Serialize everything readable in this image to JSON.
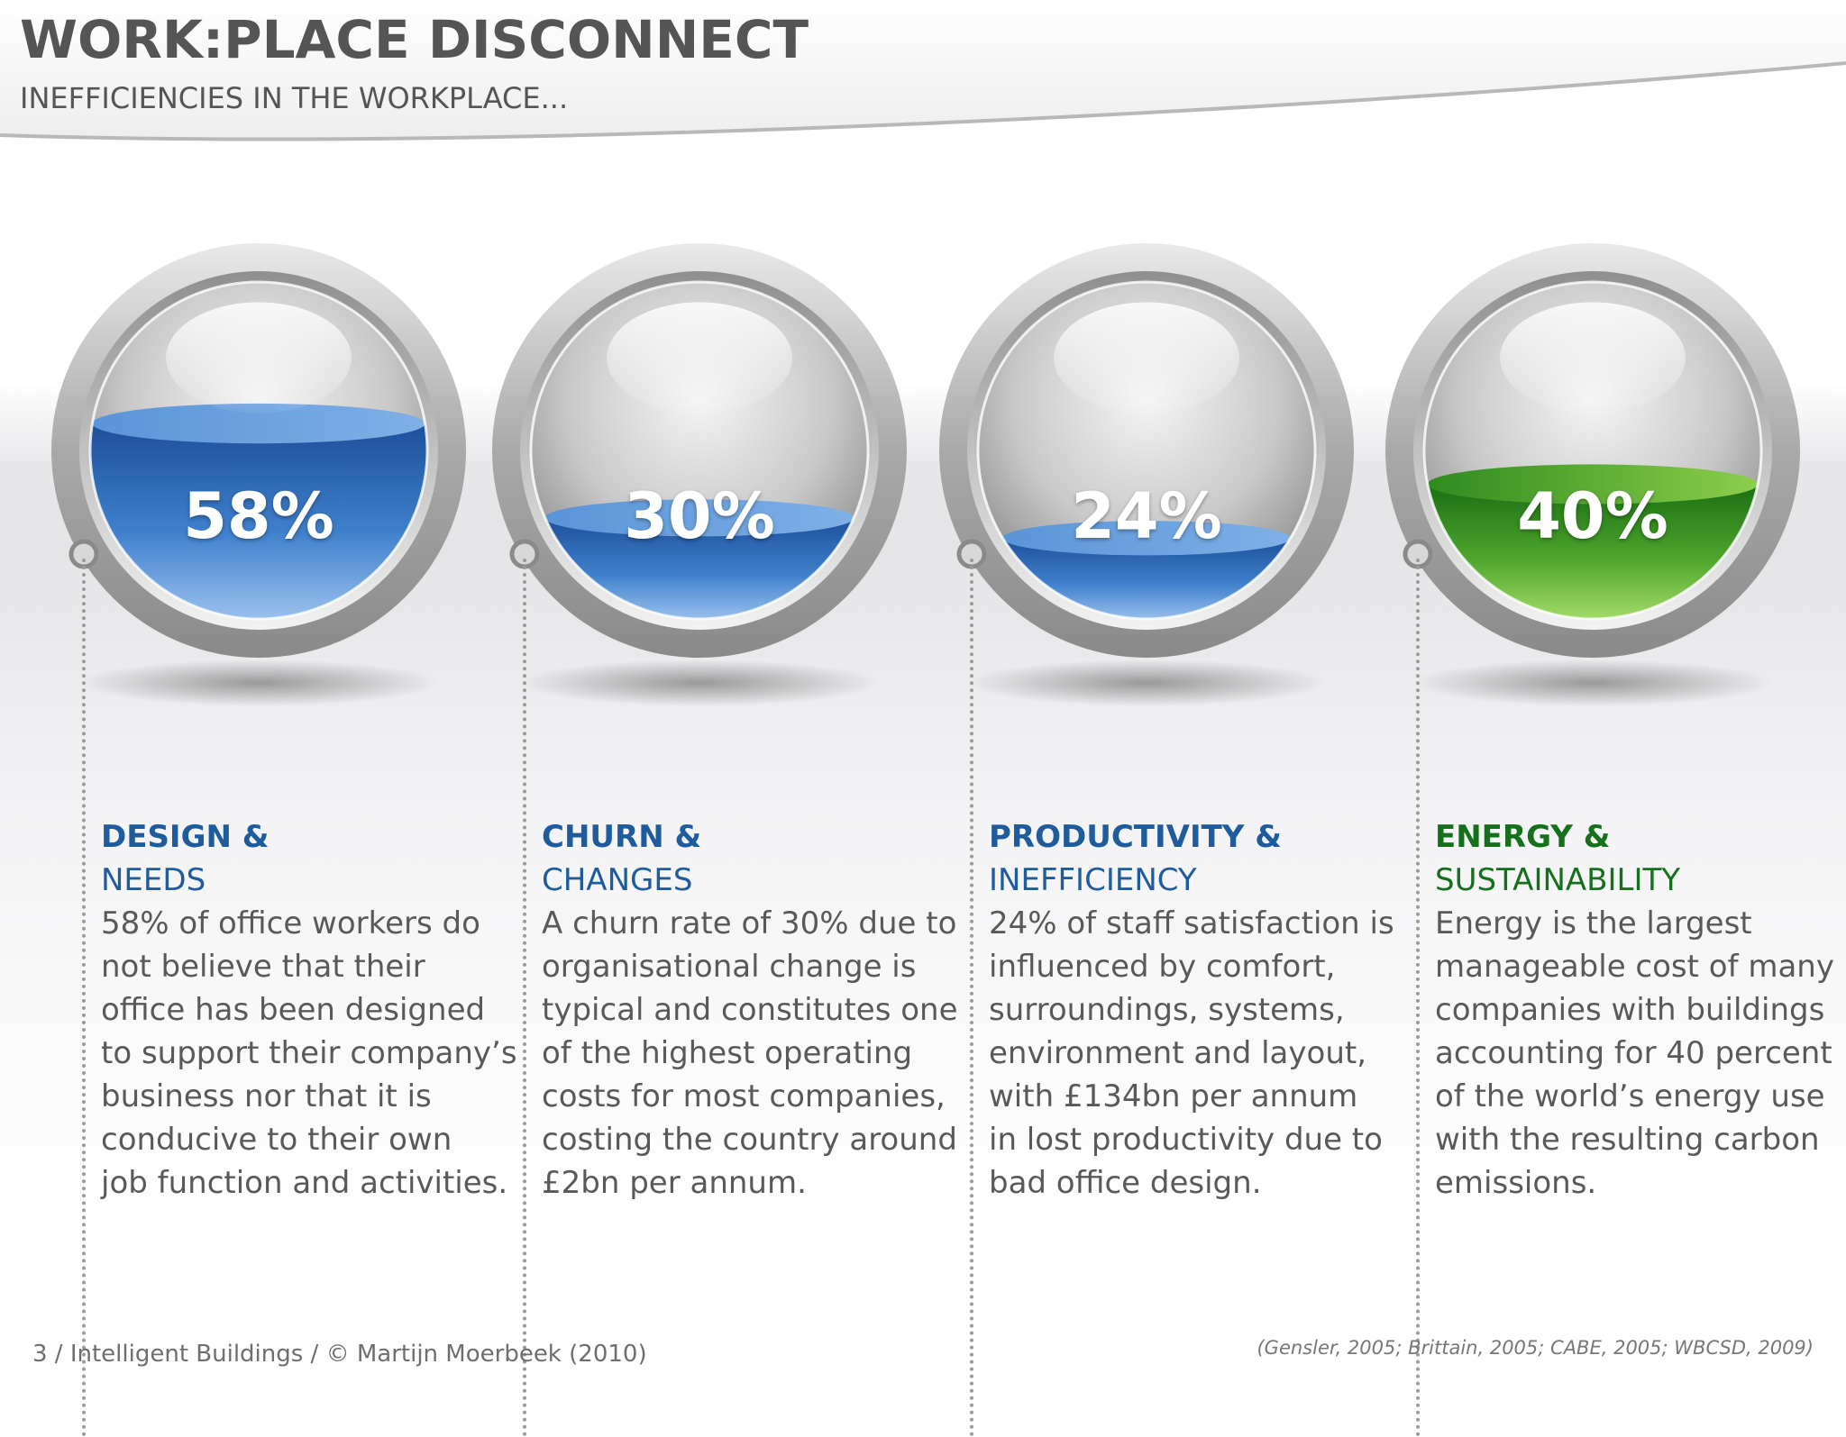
{
  "slide": {
    "title": "WORK:PLACE DISCONNECT",
    "subtitle": "INEFFICIENCIES IN THE WORKPLACE..."
  },
  "colors": {
    "blue_accent": "#1f5c9e",
    "green_accent": "#15701c",
    "blue_liquid": "#3a78c8",
    "green_liquid": "#4ea62c",
    "body_text": "#595959"
  },
  "metrics": [
    {
      "value_label": "58%",
      "fill_fraction": 0.58,
      "liquid_color": "blue",
      "heading": "DESIGN &",
      "subheading": "NEEDS",
      "description": [
        "58% of office workers do",
        "not believe that their",
        "office has been designed",
        "to support their company’s",
        "business nor that it is",
        "conducive  to their own",
        "job function  and activities."
      ]
    },
    {
      "value_label": "30%",
      "fill_fraction": 0.3,
      "liquid_color": "blue",
      "heading": "CHURN &",
      "subheading": "CHANGES",
      "description": [
        "A churn rate of 30% due to",
        "organisational change is",
        "typical and constitutes one",
        "of the highest operating",
        "costs  for most companies,",
        "costing the country around",
        "£2bn per annum."
      ]
    },
    {
      "value_label": "24%",
      "fill_fraction": 0.24,
      "liquid_color": "blue",
      "heading": "PRODUCTIVITY &",
      "subheading": "INEFFICIENCY",
      "description": [
        "24% of staff satisfaction is",
        "influenced by comfort,",
        "surroundings, systems,",
        "environment and layout,",
        "with £134bn per annum",
        "in lost productivity due to",
        "bad office design."
      ]
    },
    {
      "value_label": "40%",
      "fill_fraction": 0.4,
      "liquid_color": "green",
      "heading": "ENERGY &",
      "subheading": "SUSTAINABILITY",
      "description": [
        "Energy is the largest",
        "manageable cost of many",
        "companies with buildings",
        "accounting for 40 percent",
        "of the world’s energy use",
        "with the resulting carbon",
        "emissions."
      ]
    }
  ],
  "footer": {
    "left": "3 / Intelligent Buildings / © Martijn Moerbeek (2010)",
    "right": "(Gensler, 2005; Brittain, 2005; CABE, 2005;  WBCSD, 2009)"
  }
}
